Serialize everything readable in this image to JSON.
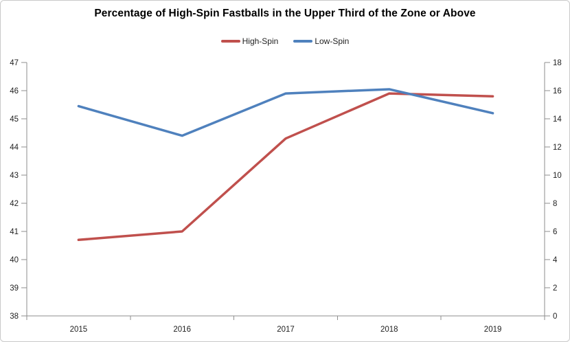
{
  "title": "Percentage of High-Spin Fastballs in the Upper Third of the Zone or Above",
  "legend": [
    {
      "label": "High-Spin",
      "color": "#C0504D"
    },
    {
      "label": "Low-Spin",
      "color": "#4F81BD"
    }
  ],
  "chart_data": {
    "type": "line",
    "title": "Percentage of High-Spin Fastballs in the Upper Third of the Zone or Above",
    "categories": [
      "2015",
      "2016",
      "2017",
      "2018",
      "2019"
    ],
    "series": [
      {
        "name": "High-Spin",
        "axis": "left",
        "color": "#C0504D",
        "values": [
          40.7,
          41.0,
          44.3,
          45.9,
          45.8
        ]
      },
      {
        "name": "Low-Spin",
        "axis": "right",
        "color": "#4F81BD",
        "values": [
          14.9,
          12.8,
          15.8,
          16.1,
          14.4
        ]
      }
    ],
    "left_axis": {
      "min": 38,
      "max": 47,
      "step": 1
    },
    "right_axis": {
      "min": 0,
      "max": 18,
      "step": 2
    },
    "xlabel": "",
    "ylabel": "",
    "grid": false,
    "legend_position": "top",
    "axis_color": "#8e8e8e"
  }
}
